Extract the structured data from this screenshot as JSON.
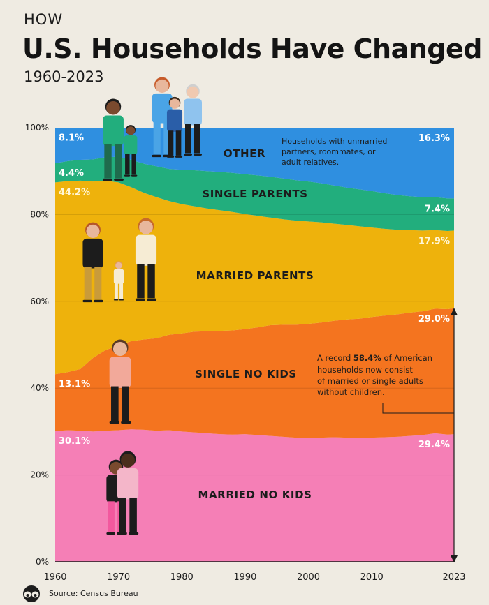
{
  "header": {
    "kicker": "HOW",
    "title": "U.S. Households Have Changed",
    "subtitle": "1960-2023"
  },
  "source": "Source: Census Bureau",
  "colors": {
    "married_no_kids": "#f57fb6",
    "single_no_kids": "#f4741f",
    "married_parents": "#eeb20c",
    "single_parents": "#22ae7d",
    "other": "#2f8fe0",
    "background": "#efebe2"
  },
  "chart_data": {
    "type": "area",
    "stacked": true,
    "xlim": [
      1960,
      2023
    ],
    "ylim": [
      0,
      100
    ],
    "x_ticks": [
      "1960",
      "1970",
      "1980",
      "1990",
      "2000",
      "2010",
      "2023"
    ],
    "y_ticks": [
      "0%",
      "20%",
      "40%",
      "60%",
      "80%",
      "100%"
    ],
    "x": [
      1960,
      1962,
      1964,
      1966,
      1968,
      1970,
      1972,
      1974,
      1976,
      1978,
      1980,
      1982,
      1984,
      1986,
      1988,
      1990,
      1992,
      1994,
      1996,
      1998,
      2000,
      2002,
      2004,
      2006,
      2008,
      2010,
      2012,
      2014,
      2016,
      2018,
      2020,
      2022,
      2023
    ],
    "series": [
      {
        "key": "married_no_kids",
        "name": "MARRIED NO KIDS",
        "values": [
          30.1,
          30.3,
          30.2,
          30.0,
          30.2,
          30.3,
          30.5,
          30.4,
          30.2,
          30.3,
          30.0,
          29.8,
          29.6,
          29.4,
          29.3,
          29.4,
          29.2,
          29.0,
          28.8,
          28.6,
          28.5,
          28.6,
          28.7,
          28.6,
          28.5,
          28.6,
          28.7,
          28.8,
          29.0,
          29.2,
          29.6,
          29.3,
          29.4
        ]
      },
      {
        "key": "single_no_kids",
        "name": "SINGLE NO KIDS",
        "values": [
          13.1,
          13.4,
          14.2,
          17.0,
          18.6,
          19.5,
          20.3,
          20.8,
          21.3,
          22.0,
          22.6,
          23.2,
          23.5,
          23.8,
          24.0,
          24.2,
          24.8,
          25.5,
          25.8,
          26.0,
          26.3,
          26.5,
          26.8,
          27.2,
          27.5,
          27.8,
          28.0,
          28.2,
          28.4,
          28.5,
          28.7,
          28.9,
          29.0
        ]
      },
      {
        "key": "married_parents",
        "name": "MARRIED PARENTS",
        "values": [
          44.2,
          44.0,
          43.4,
          40.6,
          39.0,
          37.6,
          35.5,
          33.8,
          32.5,
          30.8,
          29.8,
          28.9,
          28.3,
          27.8,
          27.3,
          26.5,
          25.7,
          24.8,
          24.3,
          24.0,
          23.6,
          23.1,
          22.4,
          21.8,
          21.3,
          20.6,
          20.0,
          19.5,
          19.0,
          18.6,
          18.1,
          18.0,
          17.9
        ]
      },
      {
        "key": "single_parents",
        "name": "SINGLE PARENTS",
        "values": [
          4.4,
          4.6,
          4.8,
          5.1,
          5.4,
          5.9,
          6.3,
          6.7,
          7.1,
          7.4,
          7.9,
          8.3,
          8.6,
          8.8,
          9.0,
          9.2,
          9.3,
          9.4,
          9.4,
          9.3,
          9.2,
          9.0,
          8.8,
          8.6,
          8.5,
          8.4,
          8.2,
          8.0,
          7.8,
          7.7,
          7.6,
          7.5,
          7.4
        ]
      },
      {
        "key": "other",
        "name": "OTHER",
        "values": [
          8.1,
          7.7,
          7.4,
          7.3,
          6.8,
          6.7,
          7.4,
          8.3,
          8.9,
          9.5,
          9.7,
          9.8,
          10.0,
          10.2,
          10.4,
          10.7,
          11.0,
          11.3,
          11.7,
          12.1,
          12.4,
          12.8,
          13.3,
          13.8,
          14.2,
          14.6,
          15.1,
          15.5,
          15.8,
          16.0,
          16.0,
          16.3,
          16.3
        ]
      }
    ],
    "start_labels": {
      "married_no_kids": "30.1%",
      "single_no_kids": "13.1%",
      "married_parents": "44.2%",
      "single_parents": "4.4%",
      "other": "8.1%"
    },
    "end_labels": {
      "married_no_kids": "29.4%",
      "single_no_kids": "29.0%",
      "married_parents": "17.9%",
      "single_parents": "7.4%",
      "other": "16.3%"
    },
    "annotations": {
      "other_note": [
        "Households with unmarried",
        "partners, roommates, or",
        "adult relatives."
      ],
      "record_prefix": "A record ",
      "record_value": "58.4%",
      "record_suffix": " of American",
      "record_lines": [
        "households now consist",
        "of married or single adults",
        "without children."
      ]
    }
  }
}
